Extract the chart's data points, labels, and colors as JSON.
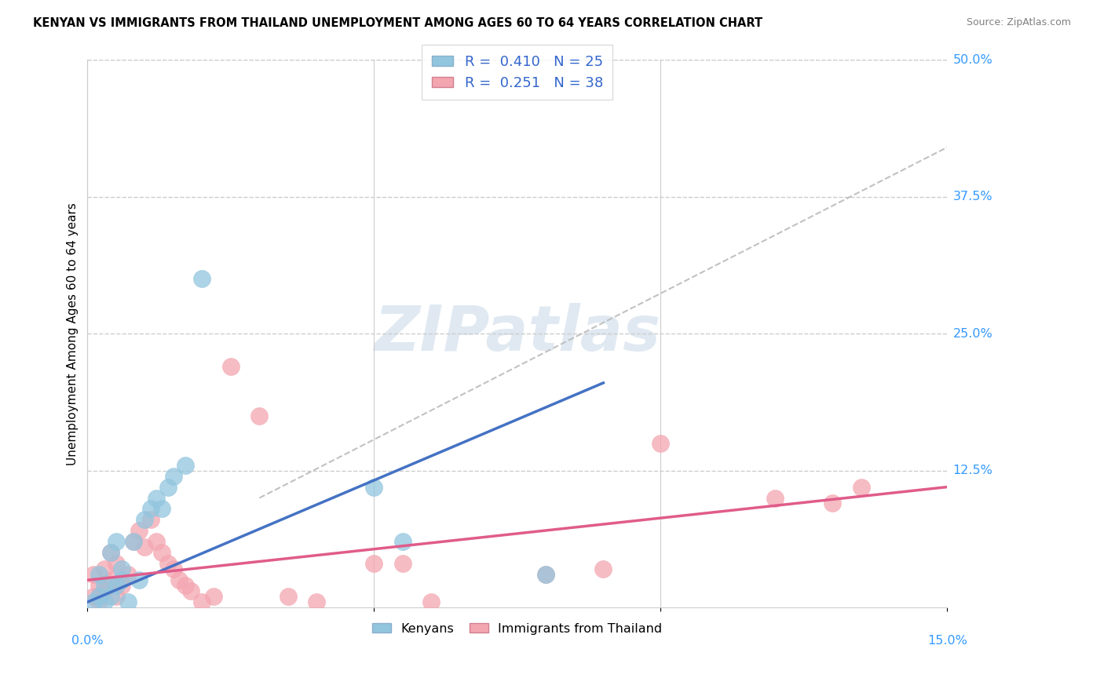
{
  "title": "KENYAN VS IMMIGRANTS FROM THAILAND UNEMPLOYMENT AMONG AGES 60 TO 64 YEARS CORRELATION CHART",
  "source": "Source: ZipAtlas.com",
  "ylabel": "Unemployment Among Ages 60 to 64 years",
  "kenyan_R": 0.41,
  "kenyan_N": 25,
  "thailand_R": 0.251,
  "thailand_N": 38,
  "kenyan_color": "#92c5de",
  "thailand_color": "#f4a6b0",
  "kenyan_line_color": "#4472c4",
  "thailand_line_color": "#e05c8a",
  "trend_line_color": "#bbbbbb",
  "background_color": "#ffffff",
  "grid_color": "#cccccc",
  "xlim": [
    0.0,
    0.15
  ],
  "ylim": [
    0.0,
    0.5
  ],
  "kenyan_x": [
    0.001,
    0.002,
    0.002,
    0.003,
    0.003,
    0.004,
    0.004,
    0.005,
    0.005,
    0.006,
    0.006,
    0.007,
    0.008,
    0.009,
    0.01,
    0.011,
    0.012,
    0.013,
    0.014,
    0.015,
    0.017,
    0.02,
    0.05,
    0.055,
    0.08
  ],
  "kenyan_y": [
    0.005,
    0.01,
    0.03,
    0.005,
    0.02,
    0.01,
    0.05,
    0.02,
    0.06,
    0.025,
    0.035,
    0.005,
    0.06,
    0.025,
    0.08,
    0.09,
    0.1,
    0.09,
    0.11,
    0.12,
    0.13,
    0.3,
    0.11,
    0.06,
    0.03
  ],
  "thailand_x": [
    0.001,
    0.001,
    0.002,
    0.002,
    0.003,
    0.003,
    0.004,
    0.004,
    0.005,
    0.005,
    0.006,
    0.007,
    0.008,
    0.009,
    0.01,
    0.011,
    0.012,
    0.013,
    0.014,
    0.015,
    0.016,
    0.017,
    0.018,
    0.02,
    0.022,
    0.025,
    0.03,
    0.035,
    0.04,
    0.05,
    0.055,
    0.06,
    0.08,
    0.09,
    0.1,
    0.12,
    0.13,
    0.135
  ],
  "thailand_y": [
    0.01,
    0.03,
    0.005,
    0.02,
    0.015,
    0.035,
    0.025,
    0.05,
    0.01,
    0.04,
    0.02,
    0.03,
    0.06,
    0.07,
    0.055,
    0.08,
    0.06,
    0.05,
    0.04,
    0.035,
    0.025,
    0.02,
    0.015,
    0.005,
    0.01,
    0.22,
    0.175,
    0.01,
    0.005,
    0.04,
    0.04,
    0.005,
    0.03,
    0.035,
    0.15,
    0.1,
    0.095,
    0.11
  ],
  "kenyan_line_x": [
    0.0,
    0.09
  ],
  "kenyan_line_y": [
    0.005,
    0.205
  ],
  "thailand_line_x": [
    0.0,
    0.15
  ],
  "thailand_line_y": [
    0.025,
    0.11
  ],
  "diag_line_x": [
    0.03,
    0.15
  ],
  "diag_line_y": [
    0.1,
    0.42
  ],
  "ytick_positions": [
    0.125,
    0.25,
    0.375,
    0.5
  ],
  "ytick_labels": [
    "12.5%",
    "25.0%",
    "37.5%",
    "50.0%"
  ],
  "xtick_positions": [
    0.0,
    0.05,
    0.1,
    0.15
  ],
  "watermark_text": "ZIPatlas"
}
